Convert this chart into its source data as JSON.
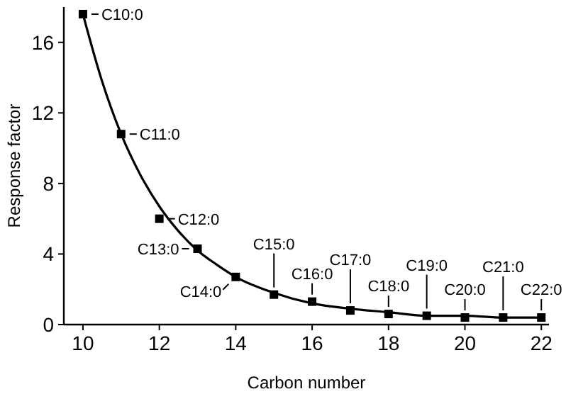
{
  "chart_data": {
    "type": "scatter",
    "xlabel": "Carbon number",
    "ylabel": "Response factor",
    "xlim": [
      9.5,
      22.2
    ],
    "ylim": [
      0,
      18
    ],
    "xticks": [
      10,
      12,
      14,
      16,
      18,
      20,
      22
    ],
    "yticks": [
      0,
      4,
      8,
      12,
      16
    ],
    "grid": false,
    "x": [
      10,
      11,
      12,
      13,
      14,
      15,
      16,
      17,
      18,
      19,
      20,
      21,
      22
    ],
    "series": [
      {
        "color": "#000000",
        "marker": "square",
        "values": [
          17.6,
          10.8,
          6.0,
          4.3,
          2.7,
          1.7,
          1.3,
          0.8,
          0.6,
          0.5,
          0.4,
          0.4,
          0.4
        ]
      },
      {
        "type": "line",
        "color": "#000000",
        "marker": "none",
        "line_style": "solid",
        "x": [
          10,
          10.5,
          11,
          11.5,
          12,
          12.5,
          13,
          13.5,
          14,
          15,
          16,
          17,
          18,
          19,
          20,
          21,
          22
        ],
        "values": [
          17.6,
          13.8,
          10.8,
          8.5,
          6.7,
          5.3,
          4.2,
          3.4,
          2.7,
          1.8,
          1.2,
          0.9,
          0.7,
          0.5,
          0.5,
          0.4,
          0.4
        ]
      }
    ],
    "annotations": [
      {
        "text": "C10:0",
        "x": 10,
        "y": 17.6
      },
      {
        "text": "C11:0",
        "x": 11,
        "y": 10.8
      },
      {
        "text": "C12:0",
        "x": 12,
        "y": 6.0
      },
      {
        "text": "C13:0",
        "x": 13,
        "y": 4.3
      },
      {
        "text": "C14:0",
        "x": 14,
        "y": 2.7
      },
      {
        "text": "C15:0",
        "x": 15,
        "y": 1.7
      },
      {
        "text": "C16:0",
        "x": 16,
        "y": 1.3
      },
      {
        "text": "C17:0",
        "x": 17,
        "y": 0.8
      },
      {
        "text": "C18:0",
        "x": 18,
        "y": 0.6
      },
      {
        "text": "C19:0",
        "x": 19,
        "y": 0.5
      },
      {
        "text": "C20:0",
        "x": 20,
        "y": 0.4
      },
      {
        "text": "C21:0",
        "x": 21,
        "y": 0.4
      },
      {
        "text": "C22:0",
        "x": 22,
        "y": 0.4
      }
    ]
  }
}
